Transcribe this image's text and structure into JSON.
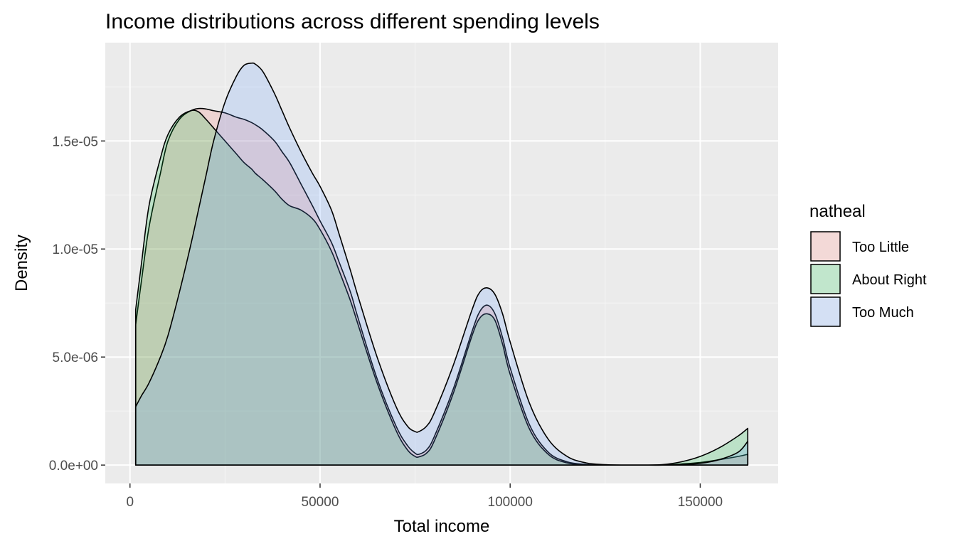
{
  "chart_data": {
    "type": "area",
    "title": "Income distributions across different spending levels",
    "xlabel": "Total income",
    "ylabel": "Density",
    "xlim": [
      -6500,
      170500
    ],
    "ylim": [
      -8.5e-07,
      1.955e-05
    ],
    "x_ticks": [
      0,
      50000,
      100000,
      150000
    ],
    "x_tick_labels": [
      "0",
      "50000",
      "100000",
      "150000"
    ],
    "y_ticks": [
      0,
      5e-06,
      1e-05,
      1.5e-05
    ],
    "y_tick_labels": [
      "0.0e+00",
      "5.0e-06",
      "1.0e-05",
      "1.5e-05"
    ],
    "grid": true,
    "legend": {
      "title": "natheal",
      "position": "right",
      "entries": [
        {
          "label": "Too Little",
          "color": "#F8766D"
        },
        {
          "label": "About Right",
          "color": "#00BA38"
        },
        {
          "label": "Too Much",
          "color": "#619CFF"
        }
      ]
    },
    "x": [
      1500,
      3000,
      5000,
      8000,
      10000,
      13000,
      16000,
      18000,
      20000,
      22000,
      25000,
      28000,
      30000,
      32000,
      33000,
      35000,
      38000,
      40000,
      42000,
      45000,
      48000,
      50000,
      53000,
      55000,
      58000,
      60000,
      65000,
      70000,
      73000,
      75000,
      76000,
      78000,
      80000,
      85000,
      90000,
      92000,
      94000,
      96000,
      98000,
      100000,
      105000,
      110000,
      115000,
      120000,
      125000,
      130000,
      135000,
      140000,
      145000,
      150000,
      155000,
      160000,
      162500
    ],
    "series": [
      {
        "name": "Too Little",
        "color": "#F8766D",
        "values": [
          6.5e-06,
          8.5e-06,
          1.1e-05,
          1.35e-05,
          1.5e-05,
          1.6e-05,
          1.64e-05,
          1.65e-05,
          1.648e-05,
          1.64e-05,
          1.63e-05,
          1.61e-05,
          1.6e-05,
          1.585e-05,
          1.575e-05,
          1.55e-05,
          1.5e-05,
          1.45e-05,
          1.4e-05,
          1.3e-05,
          1.2e-05,
          1.13e-05,
          1.03e-05,
          9.4e-06,
          8e-06,
          6.8e-06,
          4e-06,
          1.8e-06,
          9e-07,
          5.5e-07,
          5e-07,
          7e-07,
          1.3e-06,
          3.5e-06,
          6.2e-06,
          7.1e-06,
          7.4e-06,
          7e-06,
          5.9e-06,
          4.5e-06,
          1.9e-06,
          6e-07,
          1.5e-07,
          3e-08,
          0,
          0,
          0,
          0,
          5e-08,
          1.2e-07,
          2.5e-07,
          4e-07,
          5e-07
        ]
      },
      {
        "name": "About Right",
        "color": "#00BA38",
        "values": [
          7.2e-06,
          9.3e-06,
          1.2e-05,
          1.42e-05,
          1.53e-05,
          1.61e-05,
          1.64e-05,
          1.635e-05,
          1.6e-05,
          1.56e-05,
          1.5e-05,
          1.44e-05,
          1.4e-05,
          1.37e-05,
          1.35e-05,
          1.32e-05,
          1.27e-05,
          1.23e-05,
          1.2e-05,
          1.18e-05,
          1.14e-05,
          1.09e-05,
          9.9e-06,
          9e-06,
          7.6e-06,
          6.5e-06,
          3.8e-06,
          1.6e-06,
          7e-07,
          4e-07,
          3.8e-07,
          5.5e-07,
          1.1e-06,
          3.3e-06,
          6e-06,
          6.8e-06,
          7e-06,
          6.7e-06,
          5.6e-06,
          4.2e-06,
          1.7e-06,
          5e-07,
          1e-07,
          2e-08,
          0,
          0,
          0,
          2e-08,
          1.5e-07,
          4e-07,
          8e-07,
          1.35e-06,
          1.7e-06
        ]
      },
      {
        "name": "Too Much",
        "color": "#619CFF",
        "values": [
          2.7e-06,
          3.2e-06,
          3.8e-06,
          5e-06,
          6e-06,
          8e-06,
          1.02e-05,
          1.18e-05,
          1.34e-05,
          1.5e-05,
          1.68e-05,
          1.8e-05,
          1.85e-05,
          1.86e-05,
          1.855e-05,
          1.82e-05,
          1.72e-05,
          1.64e-05,
          1.56e-05,
          1.45e-05,
          1.35e-05,
          1.29e-05,
          1.18e-05,
          1.07e-05,
          9e-06,
          7.8e-06,
          5e-06,
          2.7e-06,
          1.8e-06,
          1.55e-06,
          1.55e-06,
          1.8e-06,
          2.4e-06,
          4.6e-06,
          7.2e-06,
          8e-06,
          8.2e-06,
          7.9e-06,
          7e-06,
          5.7e-06,
          2.9e-06,
          1.2e-06,
          4e-07,
          1e-07,
          2e-08,
          0,
          0,
          0,
          2e-08,
          8e-08,
          2.5e-07,
          6e-07,
          1.1e-06
        ]
      }
    ]
  }
}
